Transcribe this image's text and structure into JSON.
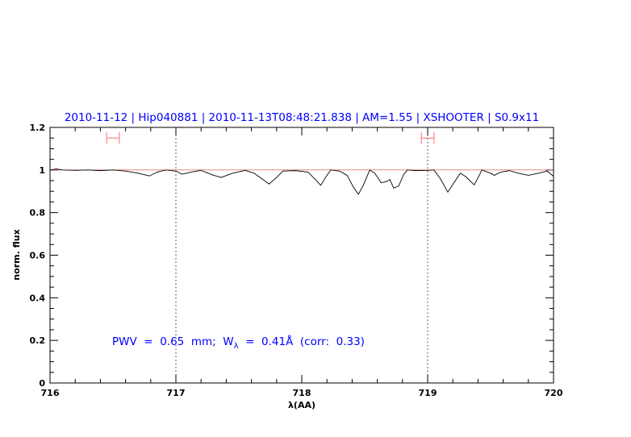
{
  "chart_data": {
    "type": "line",
    "title": "2010-11-12 | Hip040881 | 2010-11-13T08:48:21.838 | AM=1.55 | XSHOOTER | S0.9x11",
    "xlabel": "λ(AA)",
    "ylabel": "norm. flux",
    "xlim": [
      716,
      720
    ],
    "ylim": [
      0,
      1.2
    ],
    "x_ticks": [
      "716",
      "717",
      "718",
      "719",
      "720"
    ],
    "y_ticks": [
      "0",
      "0.2",
      "0.4",
      "0.6",
      "0.8",
      "1",
      "1.2"
    ],
    "grid": false,
    "annotation": {
      "pre": "PWV  =  0.65  mm;  W",
      "sub": "λ",
      "post": "  =  0.41Å  (corr:  0.33)"
    },
    "reference_line": 1.0,
    "vertical_markers": [
      717,
      719
    ],
    "error_bars": [
      {
        "x": [
          716.45,
          716.55
        ],
        "y": 1.15
      },
      {
        "x": [
          718.95,
          719.05
        ],
        "y": 1.15
      }
    ],
    "colors": {
      "title": "#0000ff",
      "annotation": "#0000ff",
      "reference": "#e04040",
      "error_bars": "#ff8080",
      "spectrum": "#000000"
    },
    "series": [
      {
        "x": [
          716.0,
          716.05,
          716.1,
          716.2,
          716.3,
          716.4,
          716.5,
          716.6,
          716.7,
          716.79,
          716.85,
          716.92,
          717.0,
          717.05,
          717.12,
          717.2,
          717.3,
          717.36,
          717.45,
          717.55,
          717.62,
          717.68,
          717.74,
          717.8,
          717.85,
          717.95,
          718.05,
          718.1,
          718.15,
          718.2,
          718.23,
          718.3,
          718.36,
          718.41,
          718.45,
          718.49,
          718.54,
          718.58,
          718.63,
          718.67,
          718.7,
          718.73,
          718.77,
          718.81,
          718.84,
          718.9,
          719.0,
          719.05,
          719.1,
          719.16,
          719.22,
          719.26,
          719.3,
          719.37,
          719.41,
          719.43,
          719.5,
          719.53,
          719.58,
          719.65,
          719.72,
          719.8,
          719.88,
          719.95,
          720.0
        ],
        "y": [
          1.0,
          1.005,
          1.0,
          0.998,
          1.0,
          0.997,
          1.0,
          0.995,
          0.985,
          0.972,
          0.99,
          1.0,
          0.995,
          0.98,
          0.99,
          0.998,
          0.975,
          0.965,
          0.985,
          0.998,
          0.985,
          0.96,
          0.934,
          0.965,
          0.995,
          0.997,
          0.99,
          0.96,
          0.928,
          0.975,
          1.0,
          0.995,
          0.975,
          0.92,
          0.886,
          0.93,
          1.0,
          0.985,
          0.94,
          0.945,
          0.955,
          0.915,
          0.925,
          0.98,
          1.0,
          0.997,
          0.998,
          1.0,
          0.96,
          0.896,
          0.95,
          0.985,
          0.97,
          0.93,
          0.975,
          1.0,
          0.985,
          0.975,
          0.99,
          0.997,
          0.985,
          0.975,
          0.985,
          0.995,
          0.97
        ]
      }
    ]
  }
}
